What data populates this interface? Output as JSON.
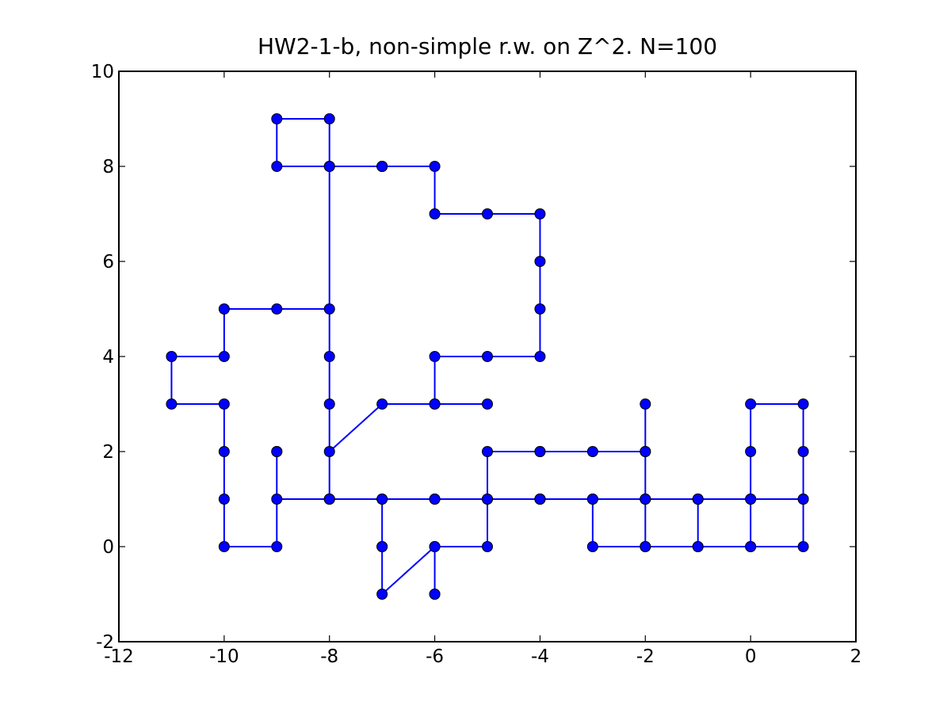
{
  "chart_data": {
    "type": "line",
    "title": "HW2-1-b, non-simple r.w. on Z^2. N=100",
    "xlabel": "",
    "ylabel": "",
    "xlim": [
      -12,
      2
    ],
    "ylim": [
      -2,
      10
    ],
    "xticks": [
      -12,
      -10,
      -8,
      -6,
      -4,
      -2,
      0,
      2
    ],
    "yticks": [
      -2,
      0,
      2,
      4,
      6,
      8,
      10
    ],
    "xtick_labels": [
      "-12",
      "-10",
      "-8",
      "-6",
      "-4",
      "-2",
      "0",
      "2"
    ],
    "ytick_labels": [
      "-2",
      "0",
      "2",
      "4",
      "6",
      "8",
      "10"
    ],
    "grid": false,
    "marker": "circle",
    "series": [
      {
        "color": "#0000ff",
        "x": [
          0,
          0,
          0,
          0,
          1,
          1,
          1,
          1,
          0,
          -1,
          -2,
          -2,
          -3,
          -3,
          -2,
          -1,
          -1,
          -1,
          -2,
          -2,
          -2,
          -2,
          -3,
          -4,
          -4,
          -5,
          -5,
          -5,
          -6,
          -6,
          -6,
          -6,
          -7,
          -7,
          -7,
          -7,
          -8,
          -8,
          -9,
          -9,
          -9,
          -9,
          -10,
          -10,
          -10,
          -10,
          -11,
          -11,
          -10,
          -10,
          -9,
          -8,
          -8,
          -8,
          -8,
          -7,
          -6,
          -5,
          -6,
          -6,
          -5,
          -4,
          -4,
          -4,
          -4,
          -5,
          -6,
          -6,
          -7,
          -7,
          -7,
          -8,
          -8,
          -9,
          -9,
          -8,
          -8,
          -7,
          -6,
          -6,
          -5,
          -4,
          -4,
          -4,
          -4,
          -3,
          -2,
          -1,
          0,
          1
        ],
        "y": [
          0,
          1,
          2,
          3,
          3,
          2,
          1,
          0,
          0,
          0,
          0,
          1,
          1,
          0,
          0,
          0,
          1,
          1,
          1,
          2,
          3,
          2,
          2,
          2,
          2,
          2,
          1,
          0,
          0,
          -1,
          -1,
          0,
          -1,
          0,
          0,
          1,
          1,
          1,
          1,
          2,
          2,
          0,
          0,
          1,
          2,
          3,
          3,
          4,
          4,
          5,
          5,
          5,
          4,
          3,
          2,
          3,
          3,
          3,
          3,
          4,
          4,
          4,
          5,
          6,
          7,
          7,
          7,
          8,
          8,
          8,
          8,
          8,
          9,
          9,
          8,
          8,
          1,
          1,
          1,
          1,
          1,
          1,
          1,
          1,
          1,
          1,
          1,
          1,
          1,
          1
        ]
      }
    ]
  }
}
